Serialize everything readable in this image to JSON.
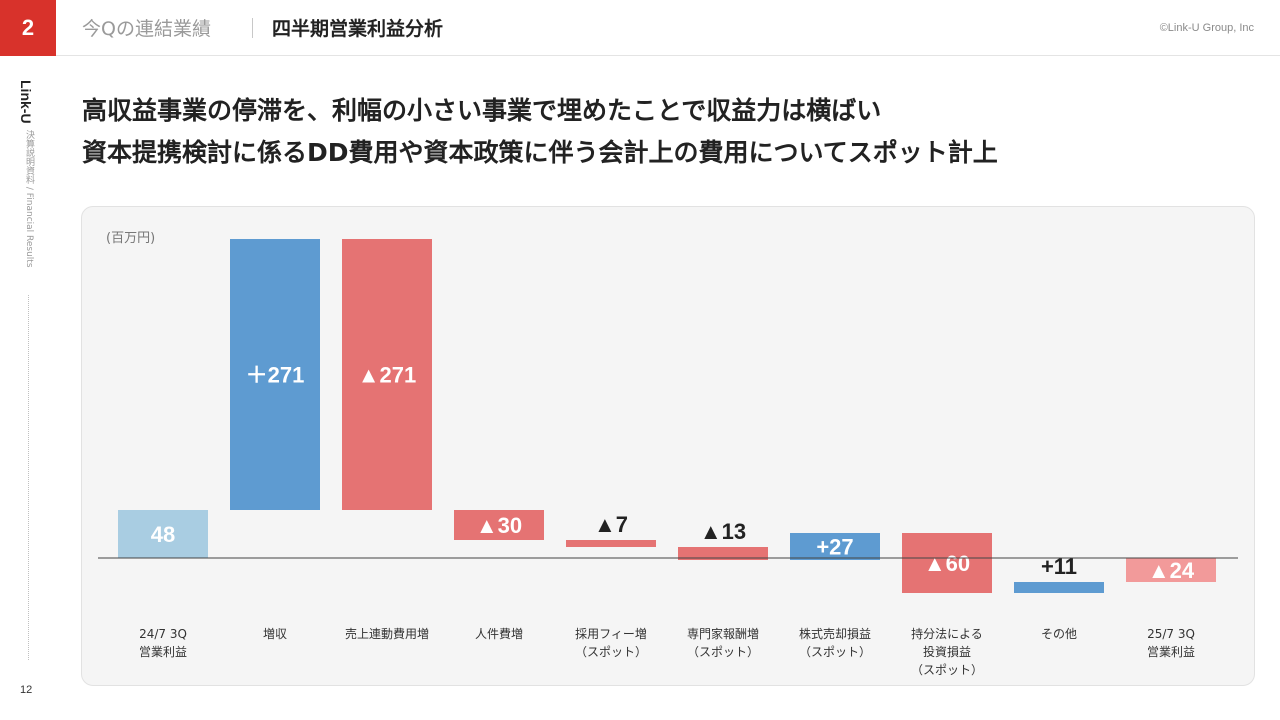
{
  "header": {
    "section_number": "2",
    "section_title": "今Qの連結業績",
    "page_title": "四半期営業利益分析",
    "copyright": "©Link-U Group, Inc"
  },
  "side": {
    "brand": "Link-U",
    "subtitle": "決算説明資料 / Financial Results",
    "page_number": "12"
  },
  "headline": {
    "line1": "高収益事業の停滞を、利幅の小さい事業で埋めたことで収益力は横ばい",
    "line2": "資本提携検討に係るDD費用や資本政策に伴う会計上の費用についてスポット計上"
  },
  "colors": {
    "base": "#a9cde2",
    "increase": "#5e9bd1",
    "decrease": "#e57373",
    "end": "#f29a9a"
  },
  "chart_data": {
    "type": "bar",
    "subtype": "waterfall",
    "unit": "(百万円)",
    "categories": [
      [
        "24/7 3Q",
        "営業利益"
      ],
      [
        "増収"
      ],
      [
        "売上連動費用増"
      ],
      [
        "人件費増"
      ],
      [
        "採用フィー増",
        "（スポット）"
      ],
      [
        "専門家報酬増",
        "（スポット）"
      ],
      [
        "株式売却損益",
        "（スポット）"
      ],
      [
        "持分法による",
        "投資損益",
        "（スポット）"
      ],
      [
        "その他"
      ],
      [
        "25/7 3Q",
        "営業利益"
      ]
    ],
    "values": [
      48,
      271,
      -271,
      -30,
      -7,
      -13,
      27,
      -60,
      11,
      -24
    ],
    "kinds": [
      "base",
      "increase",
      "decrease",
      "decrease",
      "decrease",
      "decrease",
      "increase",
      "decrease",
      "increase",
      "end"
    ],
    "labels": [
      "48",
      "＋271",
      "▲271",
      "▲30",
      "▲7",
      "▲13",
      "+27",
      "▲60",
      "+11",
      "▲24"
    ],
    "label_positions": [
      "inside",
      "inside",
      "inside",
      "inside",
      "above",
      "above",
      "inside",
      "inside",
      "above",
      "inside"
    ]
  }
}
